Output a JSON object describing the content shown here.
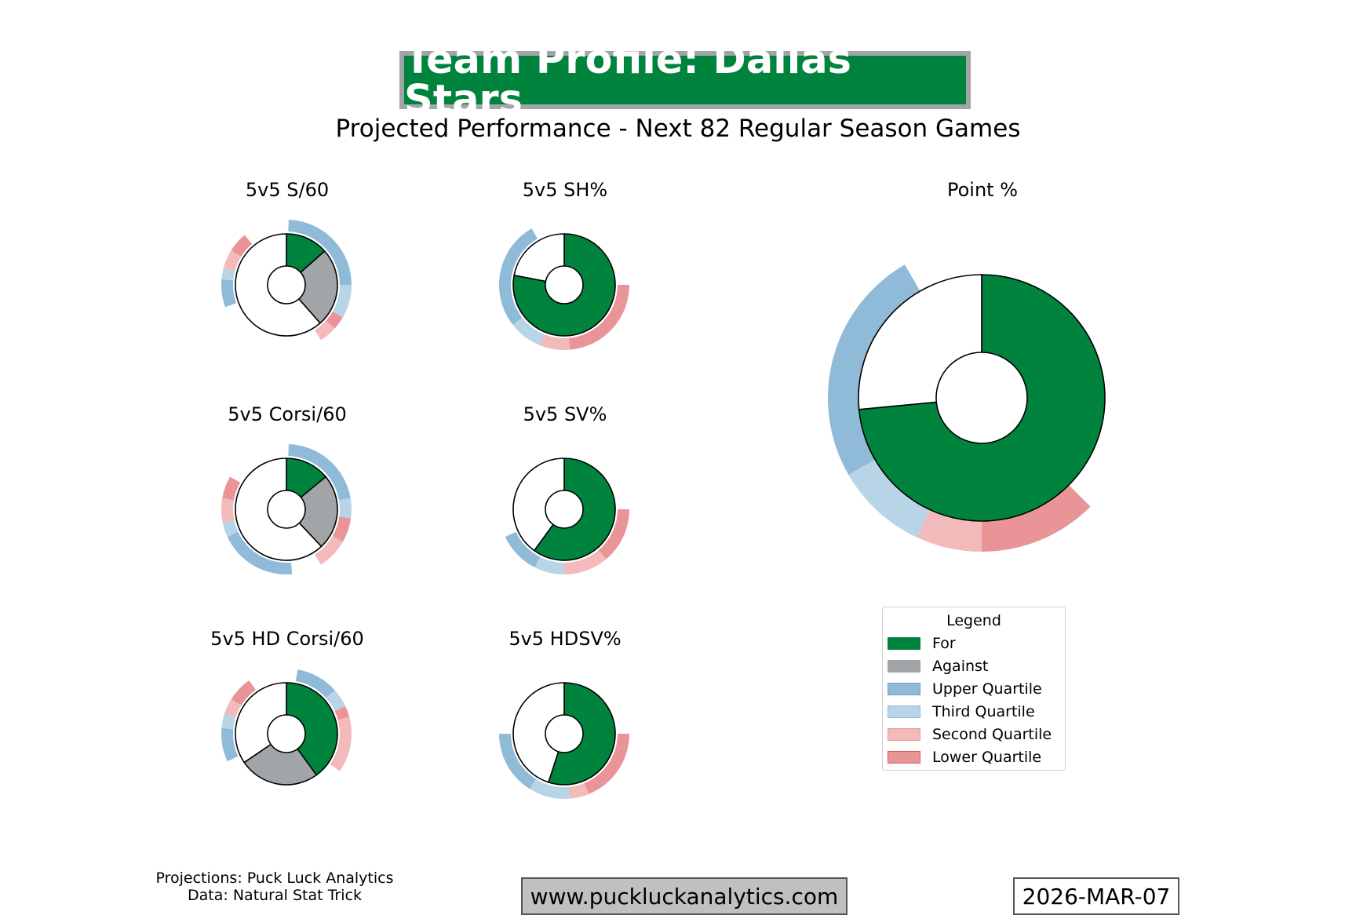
{
  "header": {
    "title": "Team Profile: Dallas Stars",
    "subtitle": "Projected Performance - Next 82 Regular Season Games"
  },
  "colors": {
    "for": "#00843d",
    "against": "#a2a5a8",
    "upper_quartile": "#8fbad8",
    "third_quartile": "#b8d5e8",
    "second_quartile": "#f2baba",
    "lower_quartile": "#e99597",
    "slice_edge": "#000000",
    "empty": "#ffffff"
  },
  "chart_data": [
    {
      "id": "s60",
      "type": "pie",
      "title": "5v5 S/60",
      "slices": [
        {
          "series": "For",
          "share": 0.135
        },
        {
          "series": "Against",
          "share": 0.25
        },
        {
          "series": "Empty",
          "share": 0.615
        }
      ],
      "quartile_rings": [
        {
          "start_deg": 2,
          "end_deg": 90,
          "quartile": "upper"
        },
        {
          "start_deg": 90,
          "end_deg": 120,
          "quartile": "third"
        },
        {
          "start_deg": 120,
          "end_deg": 132,
          "quartile": "lower"
        },
        {
          "start_deg": 132,
          "end_deg": 148,
          "quartile": "second"
        },
        {
          "start_deg": 250,
          "end_deg": 275,
          "quartile": "upper"
        },
        {
          "start_deg": 275,
          "end_deg": 285,
          "quartile": "third"
        },
        {
          "start_deg": 285,
          "end_deg": 302,
          "quartile": "second"
        },
        {
          "start_deg": 302,
          "end_deg": 320,
          "quartile": "lower"
        }
      ]
    },
    {
      "id": "shpct",
      "type": "pie",
      "title": "5v5 SH%",
      "slices": [
        {
          "series": "For",
          "share": 0.78
        },
        {
          "series": "Empty",
          "share": 0.22
        }
      ],
      "quartile_rings": [
        {
          "start_deg": 90,
          "end_deg": 175,
          "quartile": "lower"
        },
        {
          "start_deg": 175,
          "end_deg": 202,
          "quartile": "second"
        },
        {
          "start_deg": 202,
          "end_deg": 232,
          "quartile": "third"
        },
        {
          "start_deg": 232,
          "end_deg": 330,
          "quartile": "upper"
        }
      ]
    },
    {
      "id": "corsi60",
      "type": "pie",
      "title": "5v5 Corsi/60",
      "slices": [
        {
          "series": "For",
          "share": 0.14
        },
        {
          "series": "Against",
          "share": 0.24
        },
        {
          "series": "Empty",
          "share": 0.62
        }
      ],
      "quartile_rings": [
        {
          "start_deg": 2,
          "end_deg": 80,
          "quartile": "upper"
        },
        {
          "start_deg": 80,
          "end_deg": 98,
          "quartile": "third"
        },
        {
          "start_deg": 98,
          "end_deg": 120,
          "quartile": "lower"
        },
        {
          "start_deg": 120,
          "end_deg": 148,
          "quartile": "second"
        },
        {
          "start_deg": 175,
          "end_deg": 245,
          "quartile": "upper"
        },
        {
          "start_deg": 245,
          "end_deg": 258,
          "quartile": "third"
        },
        {
          "start_deg": 258,
          "end_deg": 280,
          "quartile": "second"
        },
        {
          "start_deg": 280,
          "end_deg": 300,
          "quartile": "lower"
        }
      ]
    },
    {
      "id": "svpct",
      "type": "pie",
      "title": "5v5 SV%",
      "slices": [
        {
          "series": "For",
          "share": 0.6
        },
        {
          "series": "Empty",
          "share": 0.4
        }
      ],
      "quartile_rings": [
        {
          "start_deg": 90,
          "end_deg": 140,
          "quartile": "lower"
        },
        {
          "start_deg": 140,
          "end_deg": 180,
          "quartile": "second"
        },
        {
          "start_deg": 180,
          "end_deg": 207,
          "quartile": "third"
        },
        {
          "start_deg": 207,
          "end_deg": 245,
          "quartile": "upper"
        }
      ]
    },
    {
      "id": "hdcorsi60",
      "type": "pie",
      "title": "5v5 HD Corsi/60",
      "slices": [
        {
          "series": "For",
          "share": 0.4
        },
        {
          "series": "Against",
          "share": 0.255
        },
        {
          "series": "Empty",
          "share": 0.345
        }
      ],
      "quartile_rings": [
        {
          "start_deg": 10,
          "end_deg": 48,
          "quartile": "upper"
        },
        {
          "start_deg": 48,
          "end_deg": 65,
          "quartile": "third"
        },
        {
          "start_deg": 65,
          "end_deg": 75,
          "quartile": "lower"
        },
        {
          "start_deg": 75,
          "end_deg": 125,
          "quartile": "second"
        },
        {
          "start_deg": 245,
          "end_deg": 275,
          "quartile": "upper"
        },
        {
          "start_deg": 275,
          "end_deg": 288,
          "quartile": "third"
        },
        {
          "start_deg": 288,
          "end_deg": 302,
          "quartile": "second"
        },
        {
          "start_deg": 302,
          "end_deg": 325,
          "quartile": "lower"
        }
      ]
    },
    {
      "id": "hdsvpct",
      "type": "pie",
      "title": "5v5 HDSV%",
      "slices": [
        {
          "series": "For",
          "share": 0.55
        },
        {
          "series": "Empty",
          "share": 0.45
        }
      ],
      "quartile_rings": [
        {
          "start_deg": 90,
          "end_deg": 158,
          "quartile": "lower"
        },
        {
          "start_deg": 158,
          "end_deg": 175,
          "quartile": "second"
        },
        {
          "start_deg": 175,
          "end_deg": 212,
          "quartile": "third"
        },
        {
          "start_deg": 212,
          "end_deg": 270,
          "quartile": "upper"
        }
      ]
    },
    {
      "id": "pointpct",
      "type": "pie",
      "title": "Point %",
      "slices": [
        {
          "series": "For",
          "share": 0.735
        },
        {
          "series": "Empty",
          "share": 0.265
        }
      ],
      "quartile_rings": [
        {
          "start_deg": 135,
          "end_deg": 180,
          "quartile": "lower"
        },
        {
          "start_deg": 180,
          "end_deg": 205,
          "quartile": "second"
        },
        {
          "start_deg": 205,
          "end_deg": 240,
          "quartile": "third"
        },
        {
          "start_deg": 240,
          "end_deg": 330,
          "quartile": "upper"
        }
      ]
    }
  ],
  "legend": {
    "title": "Legend",
    "items": [
      {
        "label": "For",
        "color": "#00843d",
        "edge": "#00843d"
      },
      {
        "label": "Against",
        "color": "#a2a5a8",
        "edge": "#a2a5a8"
      },
      {
        "label": "Upper Quartile",
        "color": "#8fbad8",
        "edge": "#6d9ec6"
      },
      {
        "label": "Third Quartile",
        "color": "#b8d5e8",
        "edge": "#8fbad8"
      },
      {
        "label": "Second Quartile",
        "color": "#f2baba",
        "edge": "#e99597"
      },
      {
        "label": "Lower Quartile",
        "color": "#e99597",
        "edge": "#d85c60"
      }
    ]
  },
  "footer": {
    "credit_line1": "Projections: Puck Luck Analytics",
    "credit_line2": "Data: Natural Stat Trick",
    "website": "www.puckluckanalytics.com",
    "date": "2026-MAR-07"
  }
}
